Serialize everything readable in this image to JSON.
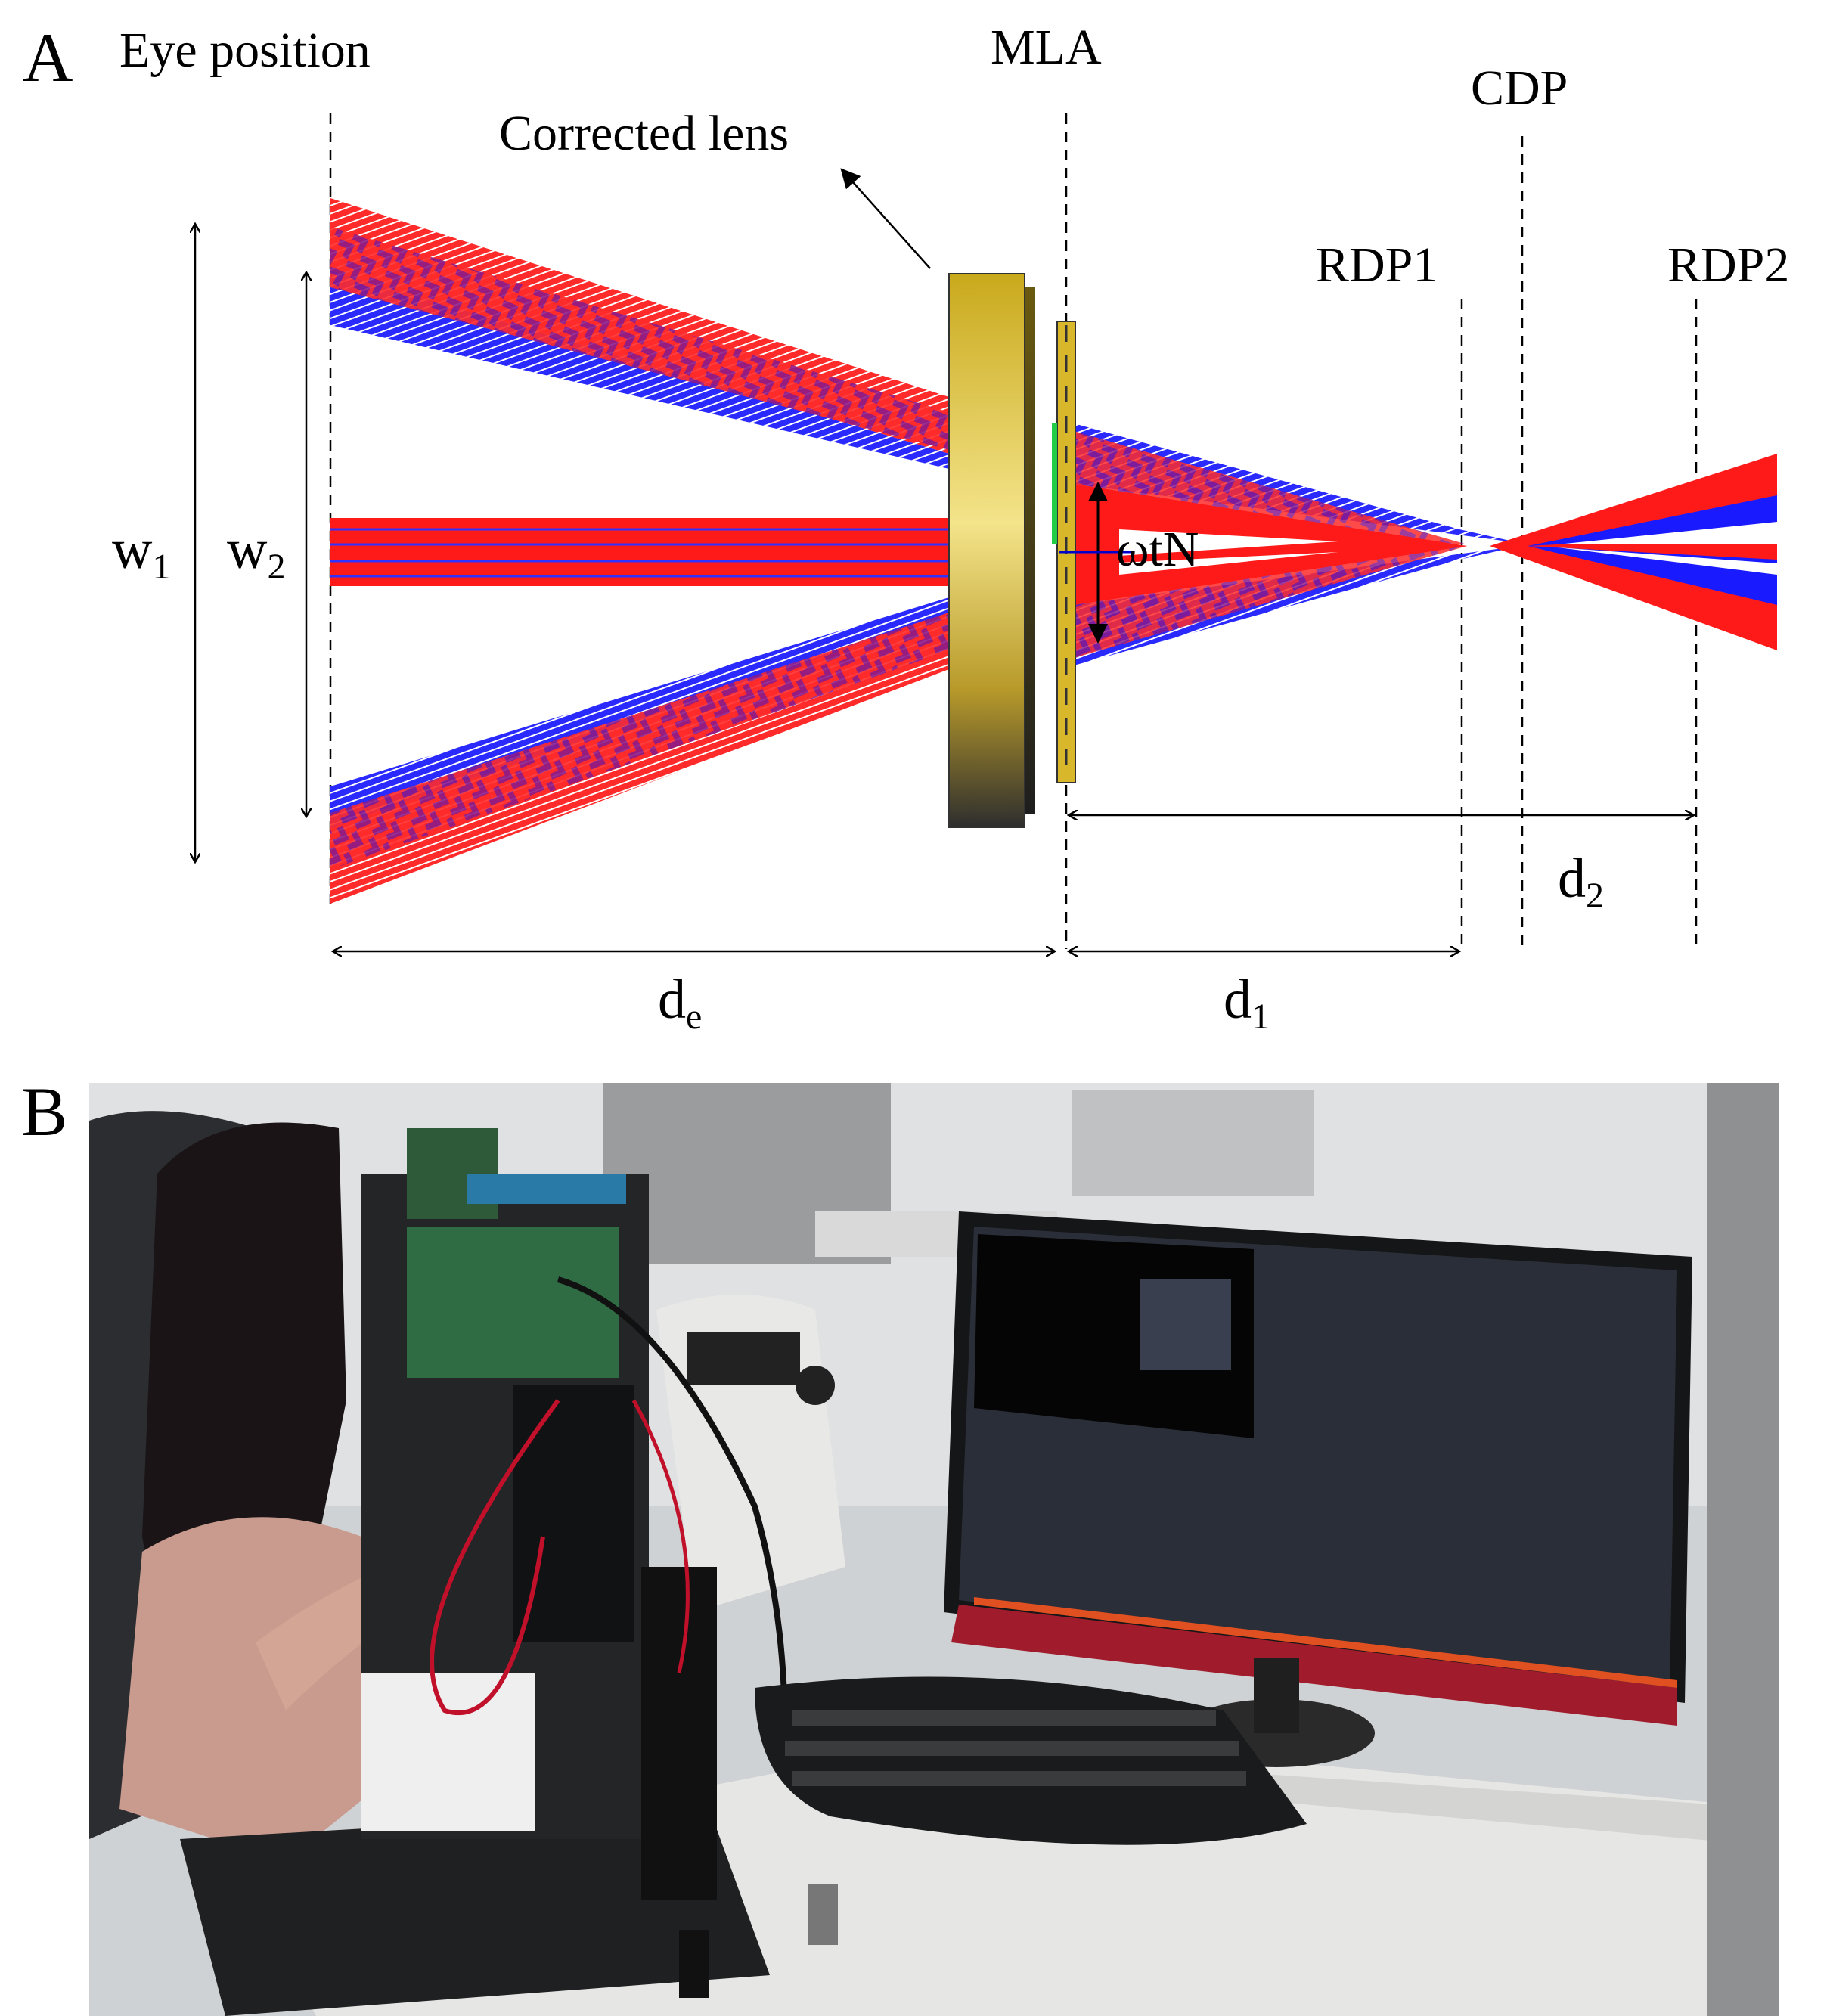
{
  "panel_a": {
    "panel_label": "A",
    "eye_position": "Eye position",
    "mla": "MLA",
    "cdp": "CDP",
    "corrected_lens": "Corrected lens",
    "rdp1": "RDP1",
    "rdp2": "RDP2",
    "w1": {
      "base": "w",
      "sub": "1"
    },
    "w2": {
      "base": "w",
      "sub": "2"
    },
    "omega": "ωtN",
    "de": {
      "base": "d",
      "sub": "e"
    },
    "d1": {
      "base": "d",
      "sub": "1"
    },
    "d2": {
      "base": "d",
      "sub": "2"
    },
    "colors": {
      "ray_red": "#ff1a1a",
      "ray_blue": "#1a1aff",
      "ray_purple": "#a01a7a",
      "lens_gold": "#d8b82a",
      "lens_dark": "#3a3a3a"
    }
  },
  "panel_b": {
    "panel_label": "B",
    "photo_description_icon": "experimental-setup-photo"
  }
}
